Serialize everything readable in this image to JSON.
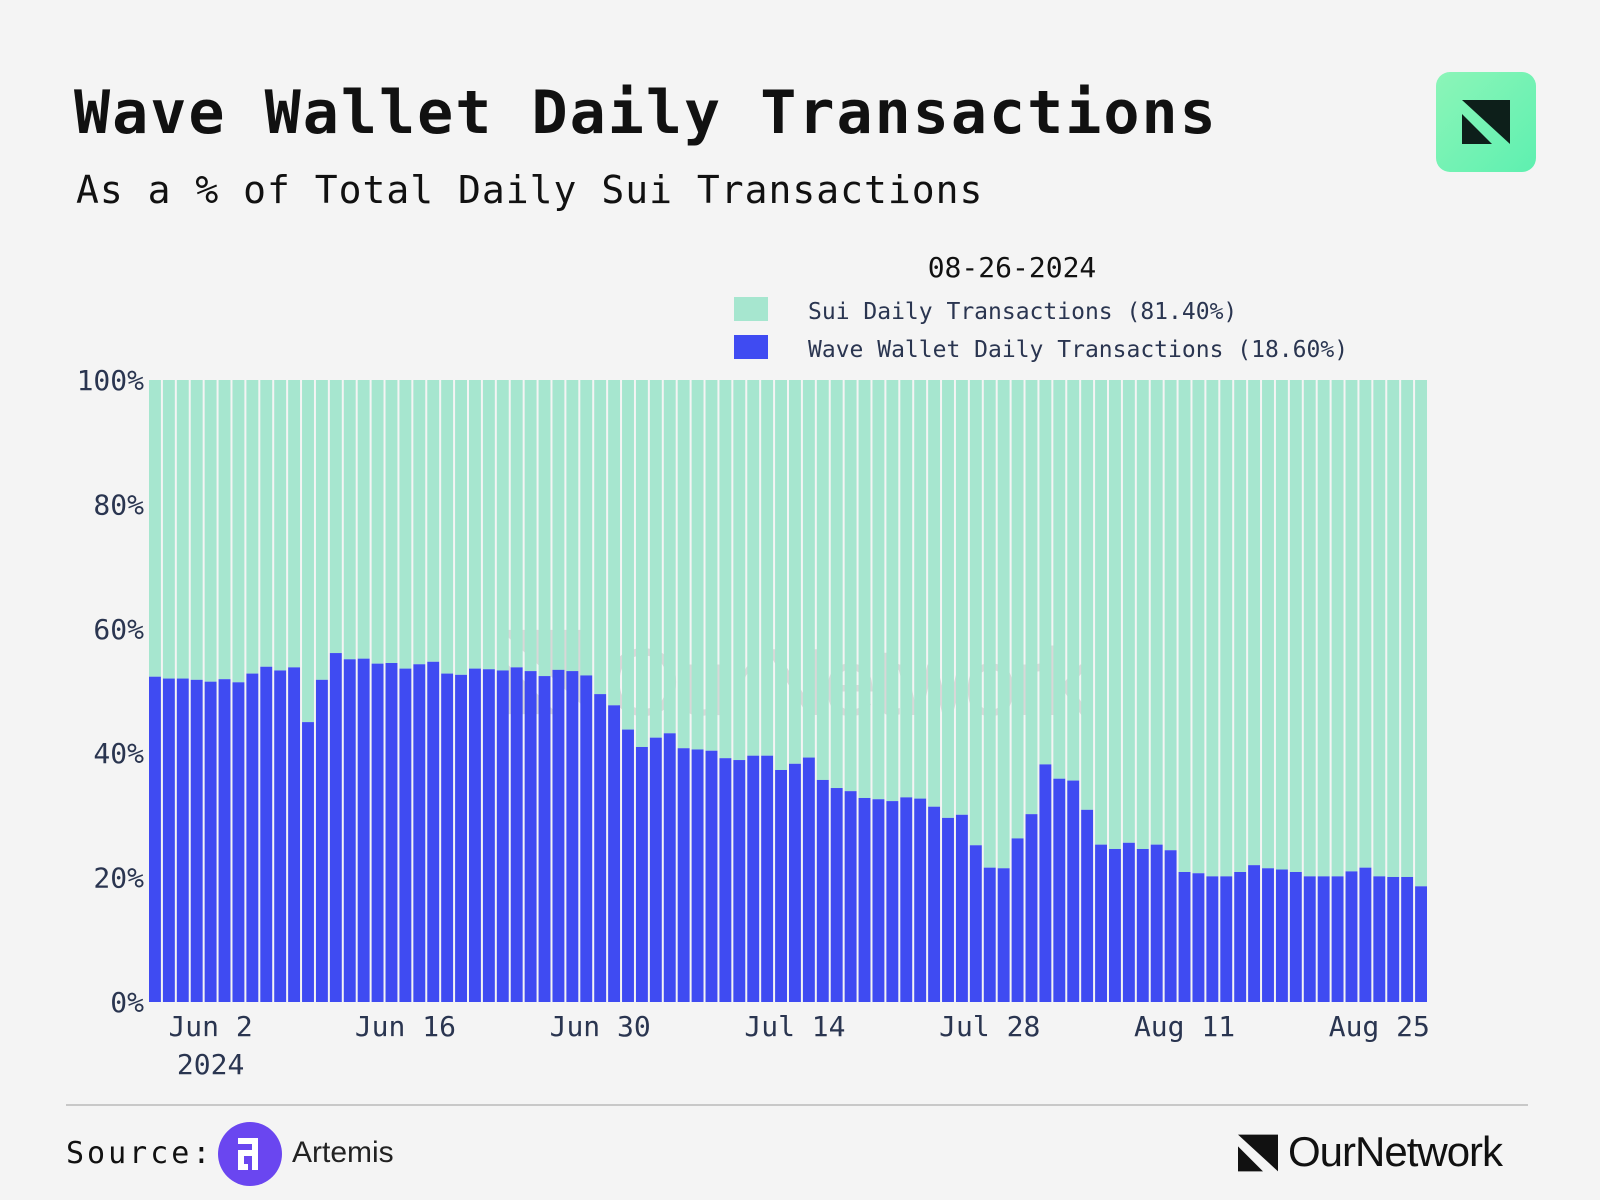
{
  "header": {
    "title": "Wave Wallet Daily Transactions",
    "subtitle": "As a % of Total Daily Sui Transactions",
    "logo_icon": "ournetwork-logo-icon"
  },
  "footer": {
    "source_label": "Source:",
    "source_name": "Artemis",
    "source_icon": "artemis-logo-icon",
    "brand_name": "OurNetwork",
    "brand_icon": "ournetwork-mark-icon"
  },
  "watermark": {
    "text": "OurNetwork"
  },
  "colors": {
    "sui": "#a6e6cf",
    "wave": "#3f4bf2",
    "background": "#f4f4f4"
  },
  "chart_data": {
    "type": "bar",
    "stacked": true,
    "hover_date": "08-26-2024",
    "x_start": "2024-05-29",
    "x_end": "2024-08-26",
    "x_ticks": [
      {
        "date": "2024-06-02",
        "label": "Jun 2",
        "sublabel": "2024"
      },
      {
        "date": "2024-06-16",
        "label": "Jun 16"
      },
      {
        "date": "2024-06-30",
        "label": "Jun 30"
      },
      {
        "date": "2024-07-14",
        "label": "Jul 14"
      },
      {
        "date": "2024-07-28",
        "label": "Jul 28"
      },
      {
        "date": "2024-08-11",
        "label": "Aug 11"
      },
      {
        "date": "2024-08-25",
        "label": "Aug 25"
      }
    ],
    "ylim": [
      0,
      100
    ],
    "y_ticks": [
      {
        "value": 0,
        "label": "0%"
      },
      {
        "value": 20,
        "label": "20%"
      },
      {
        "value": 40,
        "label": "40%"
      },
      {
        "value": 60,
        "label": "60%"
      },
      {
        "value": 80,
        "label": "80%"
      },
      {
        "value": 100,
        "label": "100%"
      }
    ],
    "legend_position": "top-right",
    "series": [
      {
        "name": "Sui Daily Transactions",
        "legend_label": "Sui Daily Transactions (81.40%)",
        "color": "#a6e6cf",
        "note": "remainder to 100%"
      },
      {
        "name": "Wave Wallet Daily Transactions",
        "legend_label": "Wave Wallet Daily Transactions (18.60%)",
        "color": "#3f4bf2",
        "values": [
          52.3,
          52.0,
          52.0,
          51.8,
          51.5,
          51.9,
          51.4,
          52.8,
          53.9,
          53.3,
          53.8,
          45.0,
          51.8,
          56.1,
          55.1,
          55.2,
          54.4,
          54.5,
          53.6,
          54.3,
          54.7,
          52.8,
          52.6,
          53.6,
          53.5,
          53.3,
          53.8,
          53.2,
          52.4,
          53.4,
          53.2,
          52.5,
          49.5,
          47.7,
          43.8,
          41.0,
          42.5,
          43.2,
          40.8,
          40.6,
          40.4,
          39.2,
          38.9,
          39.6,
          39.6,
          37.3,
          38.3,
          39.3,
          35.7,
          34.4,
          33.9,
          32.8,
          32.6,
          32.3,
          32.9,
          32.7,
          31.4,
          29.6,
          30.1,
          25.2,
          21.6,
          21.5,
          26.3,
          30.2,
          38.2,
          35.9,
          35.6,
          30.9,
          25.3,
          24.6,
          25.6,
          24.6,
          25.3,
          24.4,
          20.9,
          20.7,
          20.2,
          20.2,
          20.9,
          22.0,
          21.5,
          21.3,
          20.9,
          20.2,
          20.2,
          20.2,
          21.0,
          21.6,
          20.2,
          20.1,
          20.1,
          18.6
        ]
      }
    ]
  }
}
